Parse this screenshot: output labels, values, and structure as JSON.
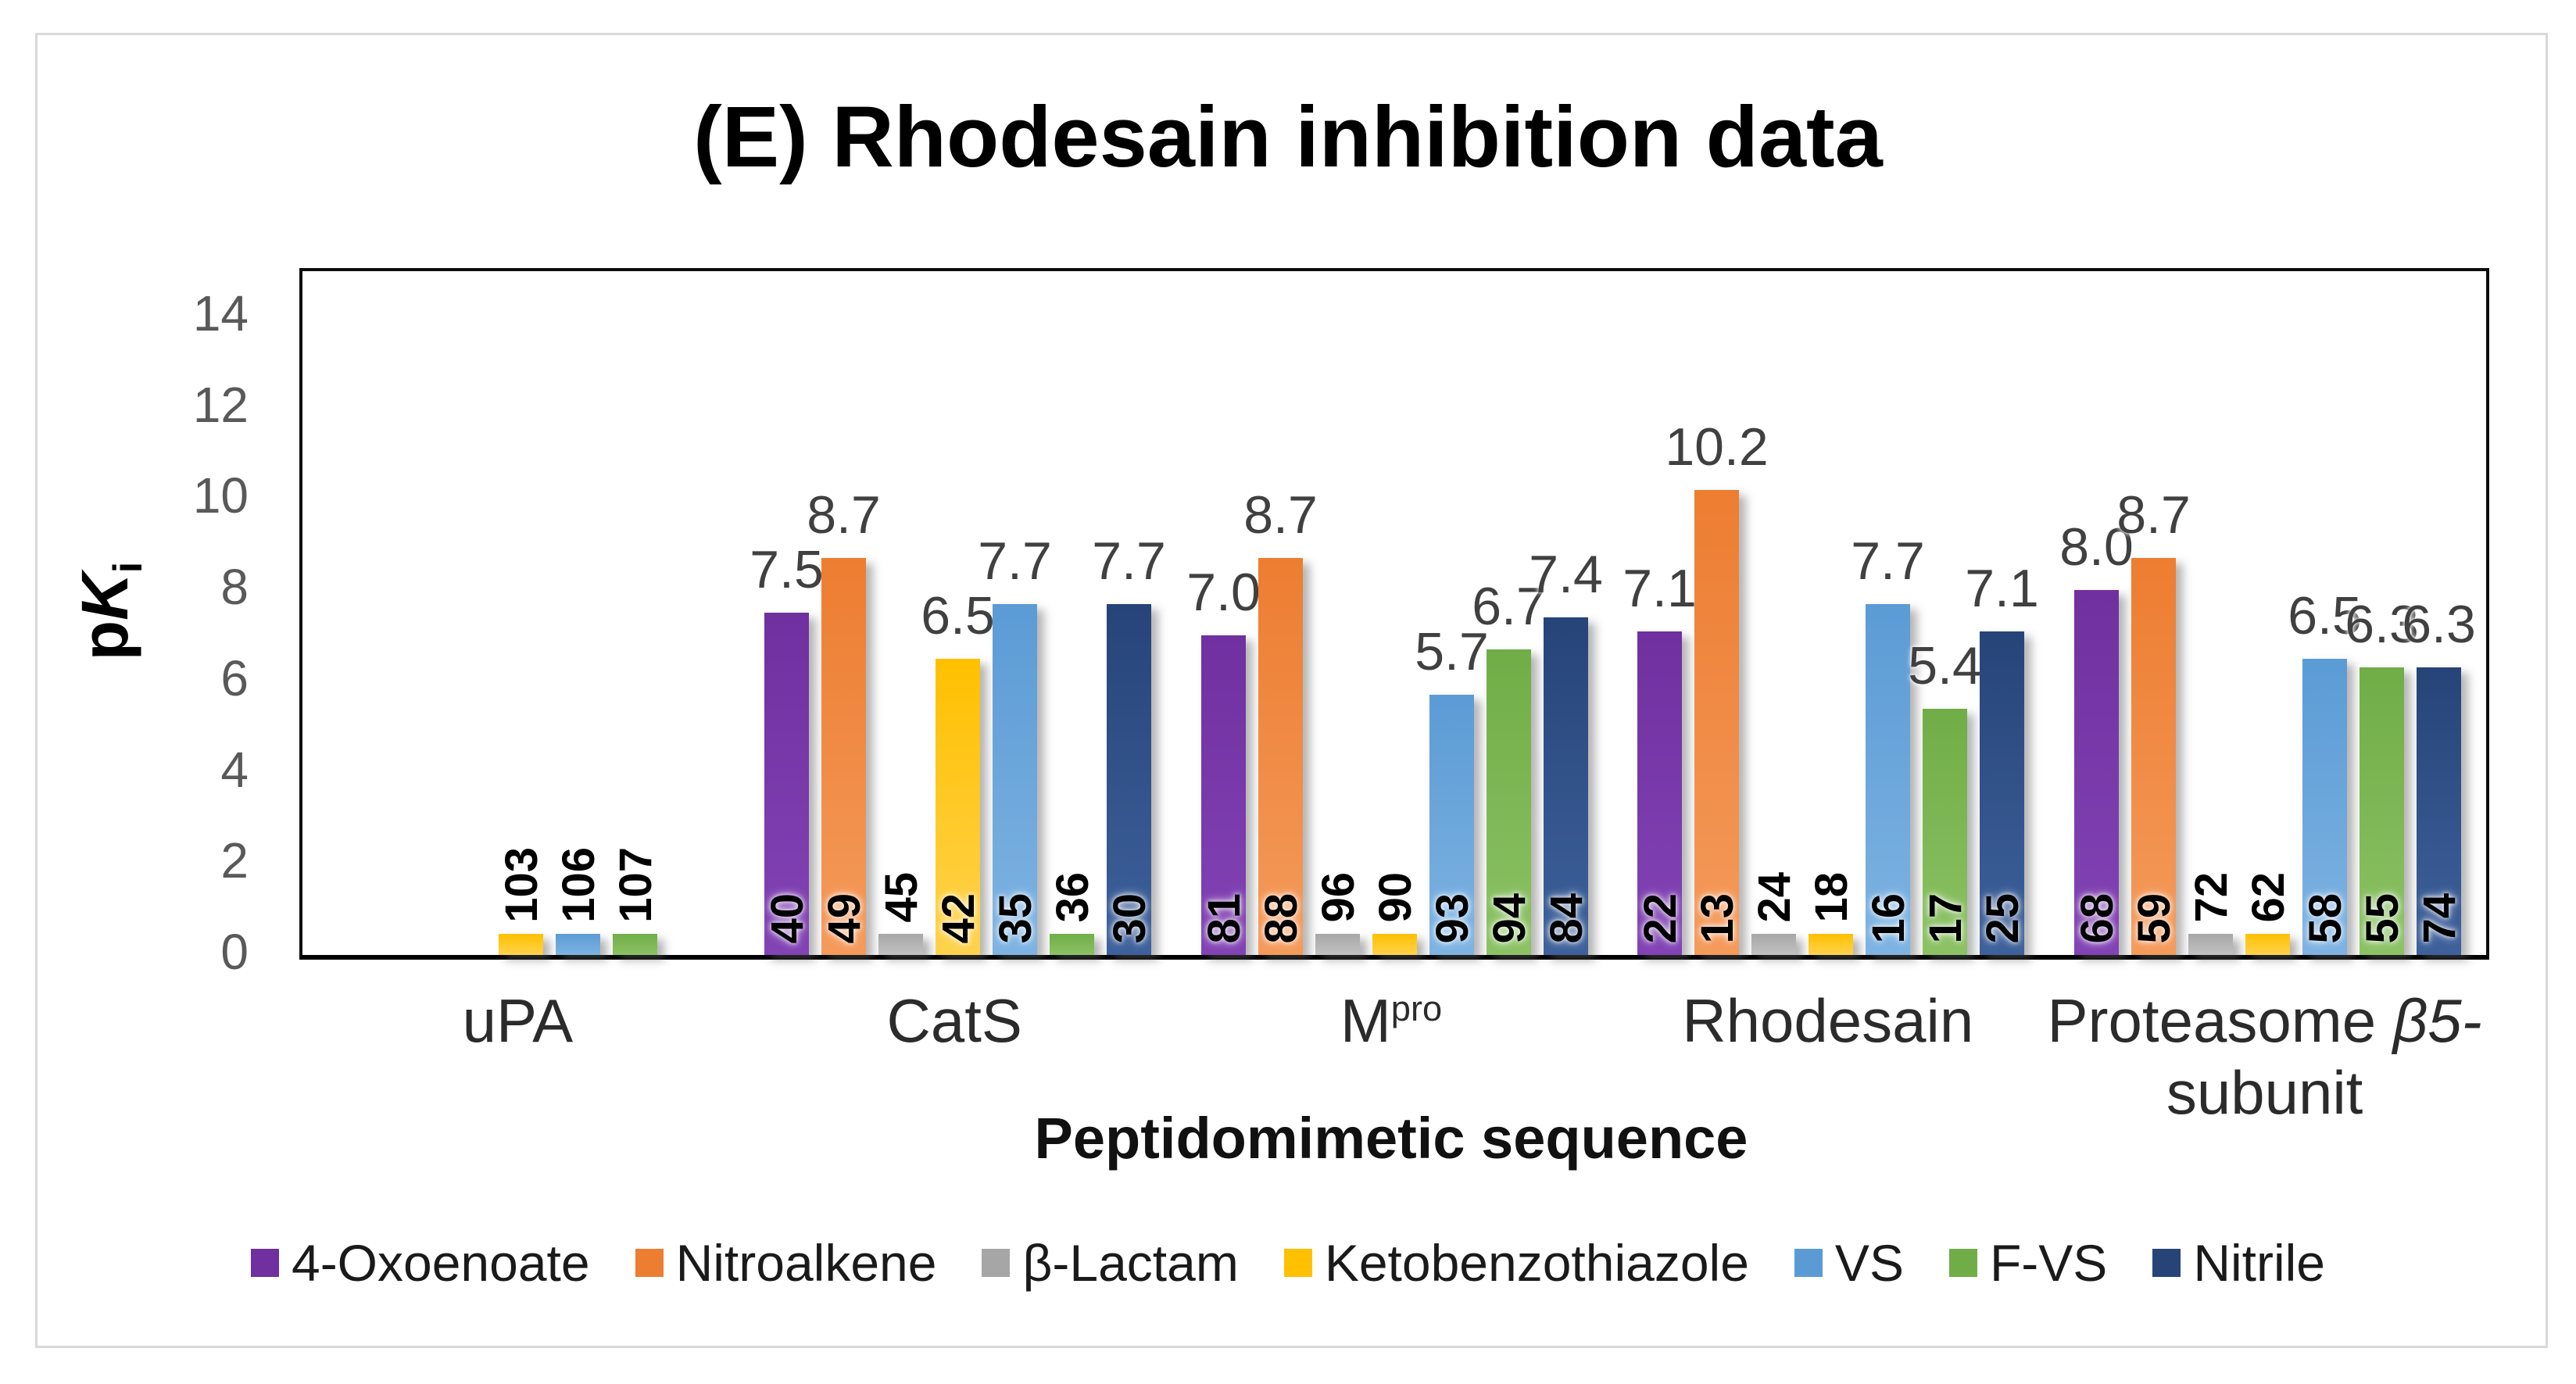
{
  "figure": {
    "title": "(E) Rhodesain inhibition data"
  },
  "chart_data": {
    "type": "bar",
    "title": "(E) Rhodesain inhibition data",
    "xlabel": "Peptidomimetic sequence",
    "ylabel": "pKi",
    "ylabel_rich": [
      {
        "text": "p"
      },
      {
        "text": "K",
        "italic": true
      },
      {
        "text": "i",
        "sub": true
      }
    ],
    "ylim": [
      0,
      15
    ],
    "yticks": [
      0,
      2,
      4,
      6,
      8,
      10,
      12,
      14
    ],
    "grid": false,
    "legend_position": "bottom",
    "annotation_note": "Rotated bold numbers on bars are compound IDs; numbers above tall bars are pKi values; short stub bars have no measurable pKi",
    "stub_value": 0.46,
    "categories": [
      {
        "name": "uPA",
        "rich": [
          {
            "text": "uPA"
          }
        ]
      },
      {
        "name": "CatS",
        "rich": [
          {
            "text": "CatS"
          }
        ]
      },
      {
        "name": "Mpro",
        "rich": [
          {
            "text": "M"
          },
          {
            "text": "pro",
            "sup": true
          }
        ]
      },
      {
        "name": "Rhodesain",
        "rich": [
          {
            "text": "Rhodesain"
          }
        ]
      },
      {
        "name": "Proteasome β5-subunit",
        "rich": [
          {
            "text": "Proteasome "
          },
          {
            "text": "β5-",
            "italic": true
          },
          {
            "text": "subunit",
            "newline": true
          }
        ]
      }
    ],
    "series": [
      {
        "name": "4-Oxoenoate",
        "color": "#7030A0",
        "color_light": "#8243B4",
        "values": [
          null,
          "7.5",
          "7.0",
          "7.1",
          "8.0"
        ],
        "compounds": [
          null,
          "40",
          "81",
          "22",
          "68"
        ]
      },
      {
        "name": "Nitroalkene",
        "color": "#ED7D31",
        "color_light": "#F49A5B",
        "values": [
          null,
          "8.7",
          "8.7",
          "10.2",
          "8.7"
        ],
        "compounds": [
          null,
          "49",
          "88",
          "13",
          "59"
        ]
      },
      {
        "name": "β-Lactam",
        "color": "#A6A6A6",
        "color_light": "#C2C2C2",
        "values": [
          null,
          "stub",
          "stub",
          "stub",
          "stub"
        ],
        "compounds": [
          null,
          "45",
          "96",
          "24",
          "72"
        ]
      },
      {
        "name": "Ketobenzothiazole",
        "color": "#FFC000",
        "color_light": "#FFD24D",
        "values": [
          "stub",
          "6.5",
          "stub",
          "stub",
          "stub"
        ],
        "compounds": [
          "103",
          "42",
          "90",
          "18",
          "62"
        ]
      },
      {
        "name": "VS",
        "color": "#5B9BD5",
        "color_light": "#7EB3E2",
        "values": [
          "stub",
          "7.7",
          "5.7",
          "7.7",
          "6.5"
        ],
        "compounds": [
          "106",
          "35",
          "93",
          "16",
          "58"
        ]
      },
      {
        "name": "F-VS",
        "color": "#70AD47",
        "color_light": "#8CC264",
        "values": [
          "stub",
          "stub",
          "6.7",
          "5.4",
          "6.3"
        ],
        "compounds": [
          "107",
          "36",
          "94",
          "17",
          "55"
        ]
      },
      {
        "name": "Nitrile",
        "color": "#264478",
        "color_light": "#3E619C",
        "values": [
          null,
          "7.7",
          "7.4",
          "7.1",
          "6.3"
        ],
        "compounds": [
          null,
          "30",
          "84",
          "25",
          "74"
        ]
      }
    ]
  }
}
